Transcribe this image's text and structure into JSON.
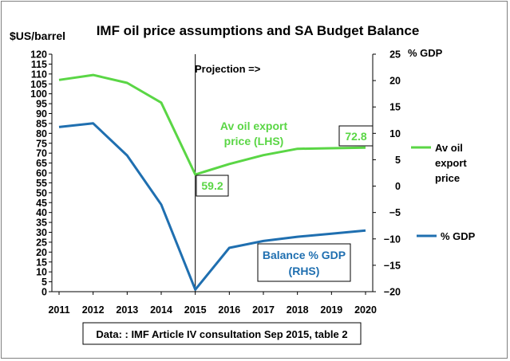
{
  "chart_data": {
    "type": "line",
    "title": "IMF oil price assumptions and SA Budget Balance",
    "ylabel_left": "$US/barrel",
    "ylabel_right": "% GDP",
    "x": [
      2011,
      2012,
      2013,
      2014,
      2015,
      2016,
      2017,
      2018,
      2019,
      2020
    ],
    "y_left_range": [
      0,
      120
    ],
    "y_left_step": 5,
    "y_right_range": [
      -20,
      25
    ],
    "y_right_step": 5,
    "grid": false,
    "legend_position": "right",
    "series": [
      {
        "name": "Av oil export price",
        "axis": "left",
        "color": "#5ad645",
        "values": [
          107,
          109.5,
          105.5,
          95.5,
          59.2,
          64.5,
          69,
          72.2,
          72.5,
          72.8
        ]
      },
      {
        "name": "% GDP",
        "axis": "right",
        "color": "#1f6fb0",
        "values": [
          11.2,
          11.9,
          5.8,
          -3.5,
          -19.6,
          -11.7,
          -10.4,
          -9.6,
          -9,
          -8.4
        ]
      }
    ],
    "annotations": {
      "projection": "Projection =>",
      "oil_label_line1": "Av oil export",
      "oil_label_line2": "price (LHS)",
      "oil_value_2015": "59.2",
      "oil_value_2020": "72.8",
      "balance_label_line1": "Balance % GDP",
      "balance_label_line2": "(RHS)",
      "source": "Data: : IMF Article IV consultation Sep 2015, table 2"
    },
    "legend": {
      "oil_line1": "Av oil",
      "oil_line2": "export",
      "oil_line3": "price",
      "gdp": "% GDP"
    }
  }
}
